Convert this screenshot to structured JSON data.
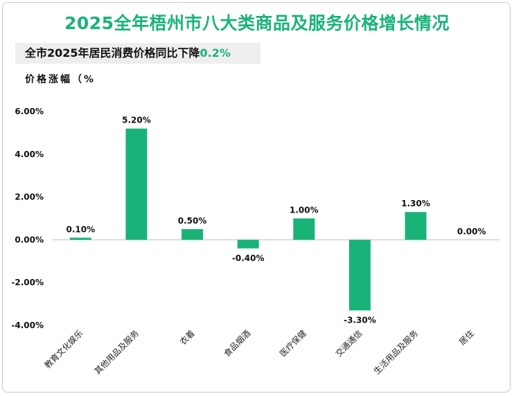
{
  "title": "2025全年梧州市八大类商品及服务价格增长情况",
  "subtitle_prefix": "全市2025年居民消费价格同比下降",
  "subtitle_value": "0.2%",
  "colors": {
    "accent": "#19b37a",
    "bar": "#19b37a",
    "axis": "#bfbfbf"
  },
  "chart_data": {
    "type": "bar",
    "ylabel": "价格涨幅（%",
    "xlabel": "",
    "ylim": [
      -4,
      6
    ],
    "yticks": [
      -4,
      -2,
      0,
      2,
      4,
      6
    ],
    "ytick_labels": [
      "-4.00%",
      "-2.00%",
      "0.00%",
      "2.00%",
      "4.00%",
      "6.00%"
    ],
    "grid": false,
    "legend": "none",
    "categories": [
      "教育文化娱乐",
      "其他用品及服务",
      "衣着",
      "食品烟酒",
      "医疗保健",
      "交通通信",
      "生活用品及服务",
      "居住"
    ],
    "values": [
      0.1,
      5.2,
      0.5,
      -0.4,
      1.0,
      -3.3,
      1.3,
      0.0
    ],
    "value_labels": [
      "0.10%",
      "5.20%",
      "0.50%",
      "-0.40%",
      "1.00%",
      "-3.30%",
      "1.30%",
      "0.00%"
    ]
  }
}
